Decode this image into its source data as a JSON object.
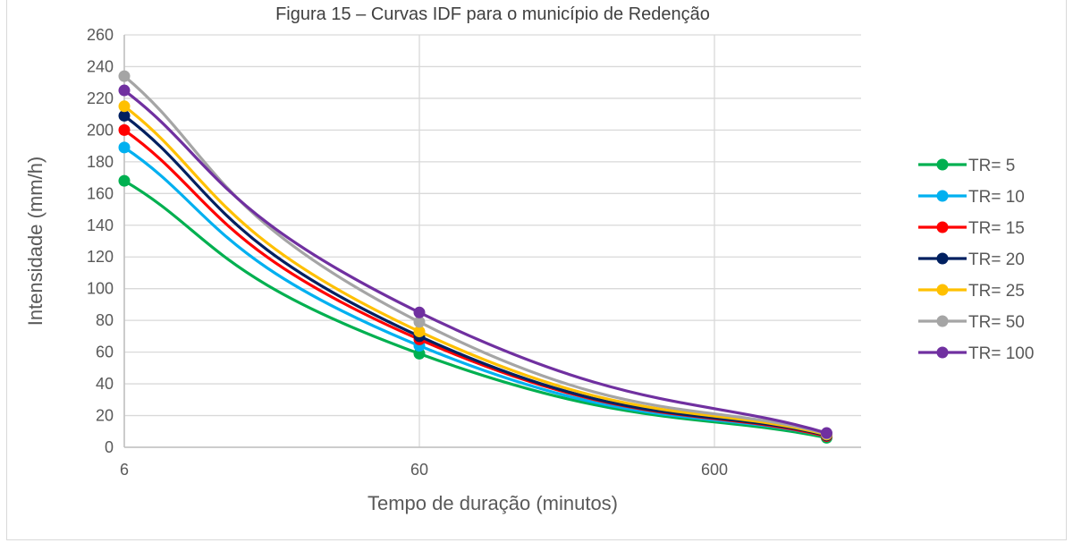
{
  "chart_data": {
    "type": "line",
    "title": "Figura 15 – Curvas IDF para o município de Redenção",
    "xlabel": "Tempo de duração (minutos)",
    "ylabel": "Intensidade (mm/h)",
    "x_scale": "log",
    "xlim": [
      6,
      1440
    ],
    "x_ticks": [
      "6",
      "60",
      "600"
    ],
    "ylim": [
      0,
      260
    ],
    "y_ticks": [
      "0",
      "20",
      "40",
      "60",
      "80",
      "100",
      "120",
      "140",
      "160",
      "180",
      "200",
      "220",
      "240",
      "260"
    ],
    "grid": true,
    "legend_position": "right",
    "x": [
      6,
      60,
      1440
    ],
    "series": [
      {
        "name": "TR= 5",
        "color": "#00b050",
        "values": [
          168,
          59,
          6
        ]
      },
      {
        "name": "TR= 10",
        "color": "#00b0f0",
        "values": [
          189,
          64,
          7
        ]
      },
      {
        "name": "TR= 15",
        "color": "#ff0000",
        "values": [
          200,
          68,
          7
        ]
      },
      {
        "name": "TR= 20",
        "color": "#002060",
        "values": [
          209,
          70,
          7.5
        ]
      },
      {
        "name": "TR= 25",
        "color": "#ffc000",
        "values": [
          215,
          73,
          8
        ]
      },
      {
        "name": "TR= 50",
        "color": "#a5a5a5",
        "values": [
          234,
          79,
          8.5
        ]
      },
      {
        "name": "TR= 100",
        "color": "#7030a0",
        "values": [
          225,
          85,
          9
        ]
      }
    ]
  }
}
